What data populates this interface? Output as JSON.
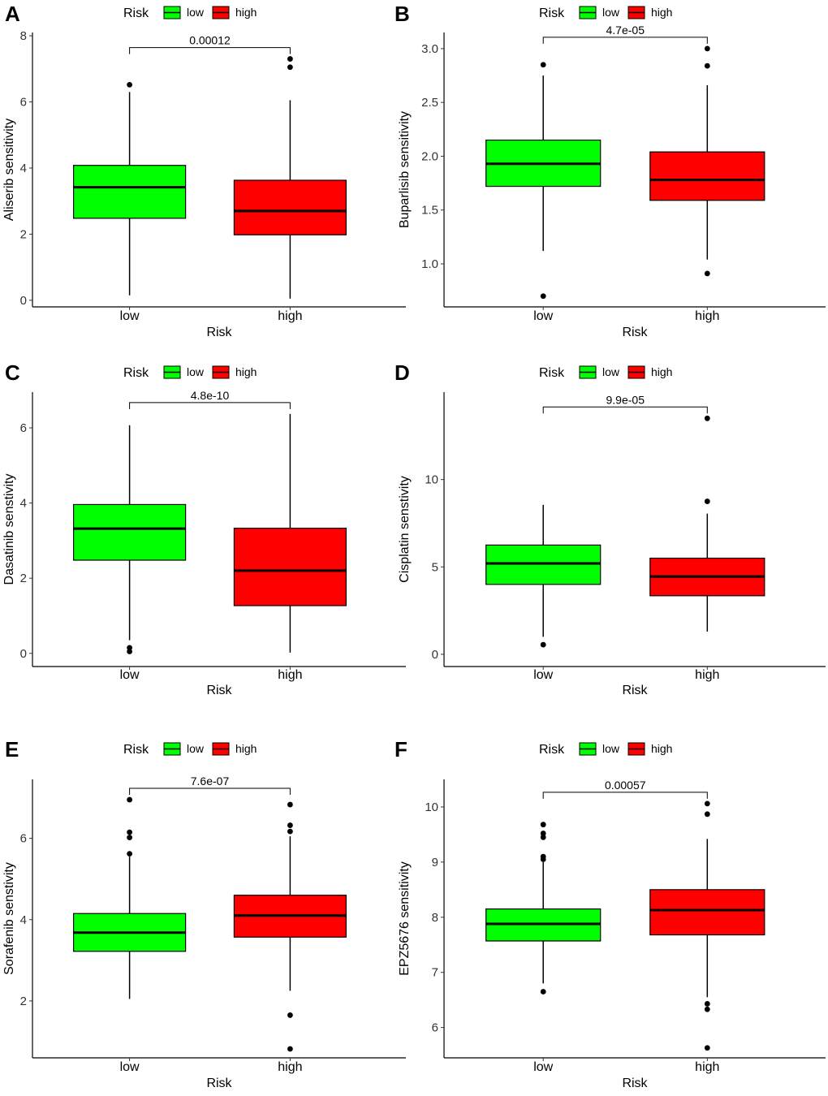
{
  "colors": {
    "low": "#00ff00",
    "high": "#ff0000",
    "outline": "#000000"
  },
  "chart_data": [
    {
      "panel": "A",
      "type": "box",
      "title": "",
      "xlabel": "Risk",
      "ylabel": "Aliserib sensitivity",
      "legend": {
        "title": "Risk",
        "items": [
          "low",
          "high"
        ],
        "placement": "top"
      },
      "categories": [
        "low",
        "high"
      ],
      "ylim": [
        -0.2,
        8.1
      ],
      "yticks": [
        0,
        2,
        4,
        6,
        8
      ],
      "pvalue": "0.00012",
      "boxes": [
        {
          "group": "low",
          "min": 0.15,
          "q1": 2.48,
          "median": 3.42,
          "q3": 4.08,
          "max": 6.3,
          "outliers": [
            6.52
          ]
        },
        {
          "group": "high",
          "min": 0.05,
          "q1": 1.98,
          "median": 2.7,
          "q3": 3.63,
          "max": 6.05,
          "outliers": [
            7.05,
            7.3
          ]
        }
      ]
    },
    {
      "panel": "B",
      "type": "box",
      "title": "",
      "xlabel": "Risk",
      "ylabel": "Buparlisib sensitivity",
      "legend": {
        "title": "Risk",
        "items": [
          "low",
          "high"
        ],
        "placement": "top"
      },
      "categories": [
        "low",
        "high"
      ],
      "ylim": [
        0.6,
        3.15
      ],
      "yticks": [
        1.0,
        1.5,
        2.0,
        2.5,
        3.0
      ],
      "pvalue": "4.7e-05",
      "boxes": [
        {
          "group": "low",
          "min": 1.12,
          "q1": 1.72,
          "median": 1.93,
          "q3": 2.15,
          "max": 2.75,
          "outliers": [
            0.7,
            2.85
          ]
        },
        {
          "group": "high",
          "min": 1.04,
          "q1": 1.59,
          "median": 1.78,
          "q3": 2.04,
          "max": 2.66,
          "outliers": [
            0.91,
            2.84,
            3.0
          ]
        }
      ]
    },
    {
      "panel": "C",
      "type": "box",
      "title": "",
      "xlabel": "Risk",
      "ylabel": "Dasatinib senstivity",
      "legend": {
        "title": "Risk",
        "items": [
          "low",
          "high"
        ],
        "placement": "top"
      },
      "categories": [
        "low",
        "high"
      ],
      "ylim": [
        -0.35,
        6.95
      ],
      "yticks": [
        0,
        2,
        4,
        6
      ],
      "pvalue": "4.8e-10",
      "boxes": [
        {
          "group": "low",
          "min": 0.35,
          "q1": 2.48,
          "median": 3.32,
          "q3": 3.96,
          "max": 6.07,
          "outliers": [
            0.05,
            0.15
          ]
        },
        {
          "group": "high",
          "min": 0.02,
          "q1": 1.27,
          "median": 2.2,
          "q3": 3.33,
          "max": 6.37,
          "outliers": []
        }
      ]
    },
    {
      "panel": "D",
      "type": "box",
      "title": "",
      "xlabel": "Risk",
      "ylabel": "Cisplatin senstivity",
      "legend": {
        "title": "Risk",
        "items": [
          "low",
          "high"
        ],
        "placement": "top"
      },
      "categories": [
        "low",
        "high"
      ],
      "ylim": [
        -0.7,
        15.0
      ],
      "yticks": [
        0,
        5,
        10
      ],
      "pvalue": "9.9e-05",
      "boxes": [
        {
          "group": "low",
          "min": 1.0,
          "q1": 4.0,
          "median": 5.2,
          "q3": 6.25,
          "max": 8.55,
          "outliers": [
            0.55
          ]
        },
        {
          "group": "high",
          "min": 1.3,
          "q1": 3.35,
          "median": 4.45,
          "q3": 5.5,
          "max": 8.05,
          "outliers": [
            8.75,
            13.5
          ]
        }
      ]
    },
    {
      "panel": "E",
      "type": "box",
      "title": "",
      "xlabel": "Risk",
      "ylabel": "Sorafenib senstivity",
      "legend": {
        "title": "Risk",
        "items": [
          "low",
          "high"
        ],
        "placement": "top"
      },
      "categories": [
        "low",
        "high"
      ],
      "ylim": [
        0.6,
        7.45
      ],
      "yticks": [
        2,
        4,
        6
      ],
      "pvalue": "7.6e-07",
      "boxes": [
        {
          "group": "low",
          "min": 2.05,
          "q1": 3.22,
          "median": 3.68,
          "q3": 4.15,
          "max": 5.55,
          "outliers": [
            5.62,
            6.02,
            6.15,
            6.95
          ]
        },
        {
          "group": "high",
          "min": 2.25,
          "q1": 3.57,
          "median": 4.1,
          "q3": 4.6,
          "max": 6.05,
          "outliers": [
            0.82,
            1.65,
            6.17,
            6.32,
            6.83
          ]
        }
      ]
    },
    {
      "panel": "F",
      "type": "box",
      "title": "",
      "xlabel": "Risk",
      "ylabel": "EPZ5676 sensitivity",
      "legend": {
        "title": "Risk",
        "items": [
          "low",
          "high"
        ],
        "placement": "top"
      },
      "categories": [
        "low",
        "high"
      ],
      "ylim": [
        5.45,
        10.5
      ],
      "yticks": [
        6,
        7,
        8,
        9,
        10
      ],
      "pvalue": "0.00057",
      "boxes": [
        {
          "group": "low",
          "min": 6.8,
          "q1": 7.57,
          "median": 7.88,
          "q3": 8.15,
          "max": 9.0,
          "outliers": [
            6.65,
            9.05,
            9.1,
            9.45,
            9.52,
            9.68
          ]
        },
        {
          "group": "high",
          "min": 6.55,
          "q1": 7.68,
          "median": 8.13,
          "q3": 8.5,
          "max": 9.42,
          "outliers": [
            5.63,
            6.33,
            6.43,
            9.87,
            10.06
          ]
        }
      ]
    }
  ]
}
